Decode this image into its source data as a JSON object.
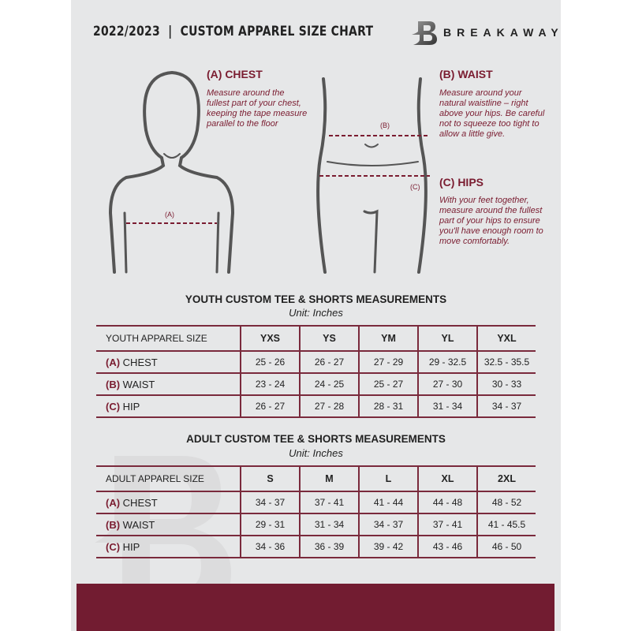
{
  "header": {
    "title": "2022/2023  |  CUSTOM APPAREL SIZE CHART",
    "brand": "BREAKAWAY",
    "watermark": "B"
  },
  "guides": {
    "chest": {
      "heading": "(A) CHEST",
      "text": "Measure around the fullest part of your chest, keeping the tape measure parallel to the floor",
      "marker": "(A)"
    },
    "waist": {
      "heading": "(B) WAIST",
      "text": "Measure around your natural waistline – right above your hips. Be careful not to squeeze too tight to allow a little give.",
      "marker": "(B)"
    },
    "hips": {
      "heading": "(C) HIPS",
      "text": "With your feet together, measure around the fullest part of your hips to ensure you'll have enough room to move comfortably.",
      "marker": "(C)"
    }
  },
  "colors": {
    "accent": "#7a1c30",
    "banner": "#721c31",
    "background": "#e6e7e8"
  },
  "youth": {
    "title": "YOUTH CUSTOM TEE & SHORTS MEASUREMENTS",
    "unit": "Unit: Inches",
    "header": [
      "YOUTH APPAREL SIZE",
      "YXS",
      "YS",
      "YM",
      "YL",
      "YXL"
    ],
    "rows": [
      {
        "letter": "(A)",
        "name": "CHEST",
        "values": [
          "25 - 26",
          "26 - 27",
          "27 - 29",
          "29 - 32.5",
          "32.5 - 35.5"
        ]
      },
      {
        "letter": "(B)",
        "name": "WAIST",
        "values": [
          "23 - 24",
          "24 - 25",
          "25 - 27",
          "27 - 30",
          "30 - 33"
        ]
      },
      {
        "letter": "(C)",
        "name": "HIP",
        "values": [
          "26 - 27",
          "27 - 28",
          "28 - 31",
          "31 - 34",
          "34 - 37"
        ]
      }
    ]
  },
  "adult": {
    "title": "ADULT CUSTOM TEE & SHORTS MEASUREMENTS",
    "unit": "Unit: Inches",
    "header": [
      "ADULT APPAREL SIZE",
      "S",
      "M",
      "L",
      "XL",
      "2XL"
    ],
    "rows": [
      {
        "letter": "(A)",
        "name": "CHEST",
        "values": [
          "34 - 37",
          "37 - 41",
          "41 - 44",
          "44 - 48",
          "48 - 52"
        ]
      },
      {
        "letter": "(B)",
        "name": "WAIST",
        "values": [
          "29 - 31",
          "31 - 34",
          "34 - 37",
          "37 - 41",
          "41 - 45.5"
        ]
      },
      {
        "letter": "(C)",
        "name": "HIP",
        "values": [
          "34 - 36",
          "36 - 39",
          "39 - 42",
          "43 - 46",
          "46 - 50"
        ]
      }
    ]
  }
}
